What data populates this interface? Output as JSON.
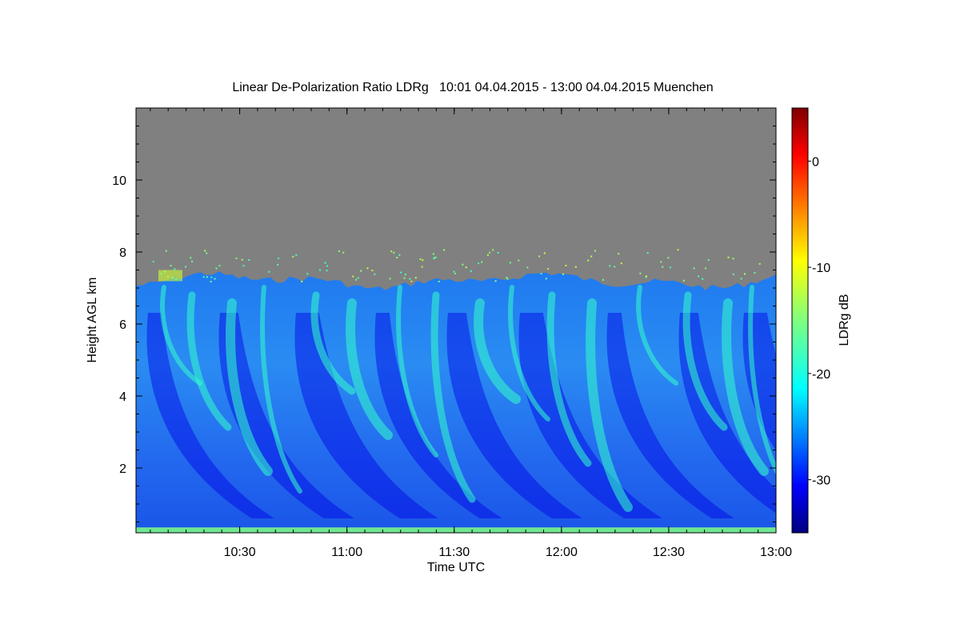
{
  "chart_data": {
    "type": "heatmap",
    "title": "Linear De-Polarization Ratio LDRg   10:01 04.04.2015 - 13:00 04.04.2015 Muenchen",
    "xlabel": "Time UTC",
    "ylabel": "Height AGL km",
    "x_ticks": [
      "10:30",
      "11:00",
      "11:30",
      "12:00",
      "12:30",
      "13:00"
    ],
    "x_tick_values_hours": [
      10.5,
      11.0,
      11.5,
      12.0,
      12.5,
      13.0
    ],
    "xlim_hours": [
      10.0167,
      13.0
    ],
    "y_ticks": [
      "2",
      "4",
      "6",
      "8",
      "10"
    ],
    "y_tick_values": [
      2,
      4,
      6,
      8,
      10
    ],
    "ylim": [
      0.2,
      12.0
    ],
    "colorbar": {
      "label": "LDRg dB",
      "ticks": [
        "0",
        "-10",
        "-20",
        "-30"
      ],
      "tick_values": [
        0,
        -10,
        -20,
        -30
      ],
      "range": [
        -35,
        5
      ],
      "colormap": "jet"
    },
    "no_signal_color": "#808080",
    "description_values": {
      "cloud_top_km": 7.2,
      "typical_ldr_db": -25,
      "fallstreak_ldr_db": -18,
      "near_ground_ldr_db": -15,
      "sparse_top_ldr_db": -12
    }
  }
}
